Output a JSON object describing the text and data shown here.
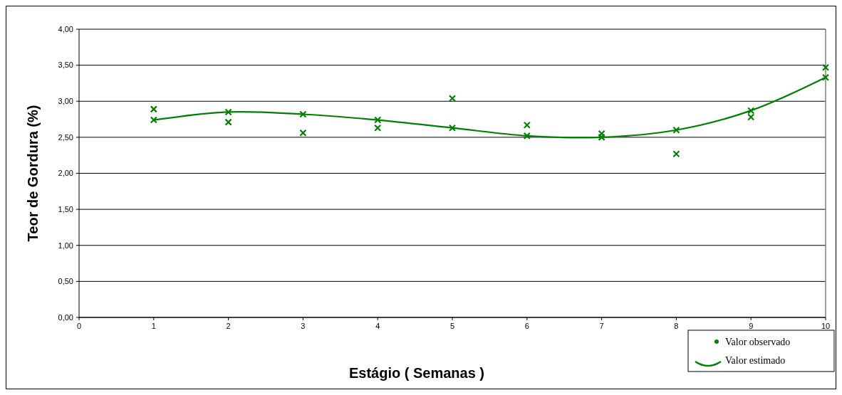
{
  "chart_data": {
    "type": "scatter",
    "xlabel": "Estágio ( Semanas )",
    "ylabel": "Teor de Gordura (%)",
    "xlim": [
      0,
      10
    ],
    "xticks": [
      0,
      1,
      2,
      3,
      4,
      5,
      6,
      7,
      8,
      9,
      10
    ],
    "ylim": [
      0,
      4
    ],
    "yticks": [
      {
        "value": 0,
        "label": "0,00"
      },
      {
        "value": 0.5,
        "label": "0,50"
      },
      {
        "value": 1,
        "label": "1,00"
      },
      {
        "value": 1.5,
        "label": "1,50"
      },
      {
        "value": 2,
        "label": "2,00"
      },
      {
        "value": 2.5,
        "label": "2,50"
      },
      {
        "value": 3,
        "label": "3,00"
      },
      {
        "value": 3.5,
        "label": "3,50"
      },
      {
        "value": 4,
        "label": "4,00"
      }
    ],
    "grid": "y",
    "legend": "bottom right",
    "marker": "cross",
    "series": [
      {
        "name": "Valor observado",
        "color": "#008000",
        "x": [
          1,
          2,
          3,
          4,
          5,
          6,
          7,
          8,
          9,
          10
        ],
        "values": [
          2.89,
          2.71,
          2.56,
          2.63,
          3.04,
          2.67,
          2.55,
          2.27,
          2.78,
          3.47
        ]
      },
      {
        "name": "Valor estimado",
        "type": "line",
        "color": "#008000",
        "x": [
          1,
          2,
          3,
          4,
          5,
          6,
          7,
          8,
          9,
          10
        ],
        "values": [
          2.74,
          2.85,
          2.82,
          2.74,
          2.63,
          2.52,
          2.5,
          2.6,
          2.87,
          3.33
        ]
      }
    ]
  }
}
